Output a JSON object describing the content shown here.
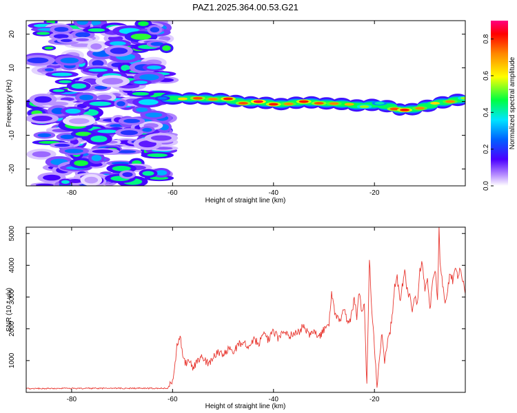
{
  "figure": {
    "title": "PAZ1.2025.364.00.53.G21"
  },
  "chart_data": [
    {
      "type": "heatmap",
      "xlabel": "Height of straight line (km)",
      "ylabel": "Frequency (Hz)",
      "xlim": [
        -89,
        -2
      ],
      "ylim": [
        -25,
        24
      ],
      "xticks": [
        -80,
        -60,
        -40,
        -20
      ],
      "yticks": [
        20,
        10,
        0,
        -10,
        -20
      ],
      "noise_region": {
        "x_range": [
          -87,
          -61
        ],
        "amplitude_range": [
          0.05,
          0.55
        ]
      },
      "signal_track": {
        "start_km": -62,
        "x": [
          -62,
          -58,
          -55,
          -52,
          -49,
          -46,
          -43,
          -40,
          -37,
          -34,
          -31,
          -28,
          -25,
          -22,
          -19,
          -16,
          -14,
          -11,
          -8,
          -5,
          -2
        ],
        "frequency_hz": [
          1.0,
          0.8,
          1.0,
          0.7,
          0.8,
          -0.5,
          0.0,
          -0.8,
          -0.7,
          0.0,
          -0.5,
          -0.6,
          -0.8,
          -1.5,
          -0.5,
          -2.2,
          -2.5,
          -2.0,
          -0.5,
          0.0,
          1.0
        ],
        "peak_amplitude": [
          0.3,
          0.7,
          0.85,
          0.8,
          0.9,
          0.85,
          0.95,
          0.9,
          0.8,
          0.9,
          0.85,
          0.8,
          0.75,
          0.6,
          0.45,
          0.85,
          0.9,
          0.8,
          0.7,
          0.8,
          0.6
        ]
      },
      "colorbar": {
        "label": "Normalized spectral amplitude",
        "range": [
          0,
          0.9
        ],
        "ticks": [
          "0.0",
          "0.2",
          "0.4",
          "0.6",
          "0.8"
        ]
      }
    },
    {
      "type": "line",
      "xlabel": "Height of straight line (km)",
      "ylabel": "SNR (10 * v/v)",
      "xlim": [
        -89,
        -2
      ],
      "ylim": [
        0,
        5200
      ],
      "xticks": [
        -80,
        -60,
        -40,
        -20
      ],
      "yticks": [
        1000,
        2000,
        3000,
        4000,
        5000
      ],
      "series": [
        {
          "name": "SNR",
          "color": "#e8352e",
          "x": [
            -89,
            -61,
            -60,
            -59.5,
            -59,
            -58.5,
            -58,
            -57.5,
            -57,
            -56,
            -55,
            -54,
            -53,
            -52,
            -51,
            -50,
            -49,
            -48,
            -47,
            -46,
            -45,
            -44,
            -43,
            -42,
            -41,
            -40,
            -39,
            -38,
            -37,
            -36,
            -35,
            -34,
            -33,
            -32,
            -31,
            -30,
            -29,
            -28.5,
            -28,
            -27.5,
            -27,
            -26,
            -25,
            -24,
            -23.5,
            -23,
            -22.5,
            -22,
            -21.5,
            -21,
            -20.5,
            -20,
            -19.5,
            -19,
            -18.5,
            -18,
            -17.5,
            -17,
            -16.5,
            -16,
            -15.5,
            -15,
            -14.5,
            -14,
            -13.5,
            -13,
            -12.5,
            -12,
            -11.5,
            -11,
            -10.5,
            -10,
            -9.5,
            -9,
            -8.5,
            -8,
            -7.5,
            -7.2,
            -7,
            -6.5,
            -6,
            -5.5,
            -5,
            -4.5,
            -4,
            -3.5,
            -3,
            -2.5,
            -2
          ],
          "values": [
            120,
            130,
            300,
            900,
            1600,
            1800,
            1200,
            900,
            1000,
            800,
            1000,
            1100,
            900,
            1050,
            1300,
            1150,
            1400,
            1250,
            1500,
            1600,
            1350,
            1700,
            1550,
            1800,
            1650,
            1900,
            1700,
            2000,
            1750,
            1850,
            1900,
            2100,
            1800,
            1950,
            1700,
            2000,
            2200,
            3100,
            2600,
            2400,
            2200,
            2600,
            2100,
            2900,
            2400,
            3200,
            2500,
            2800,
            150,
            4200,
            2500,
            1500,
            150,
            1200,
            1800,
            1000,
            1500,
            1800,
            2400,
            3300,
            3600,
            2900,
            3300,
            3800,
            3200,
            3000,
            2600,
            3100,
            2700,
            3800,
            4100,
            3300,
            3600,
            2600,
            3400,
            3900,
            2900,
            5200,
            4200,
            3400,
            2800,
            3200,
            3800,
            3500,
            4000,
            3600,
            3900,
            3500,
            3100
          ]
        }
      ]
    }
  ]
}
